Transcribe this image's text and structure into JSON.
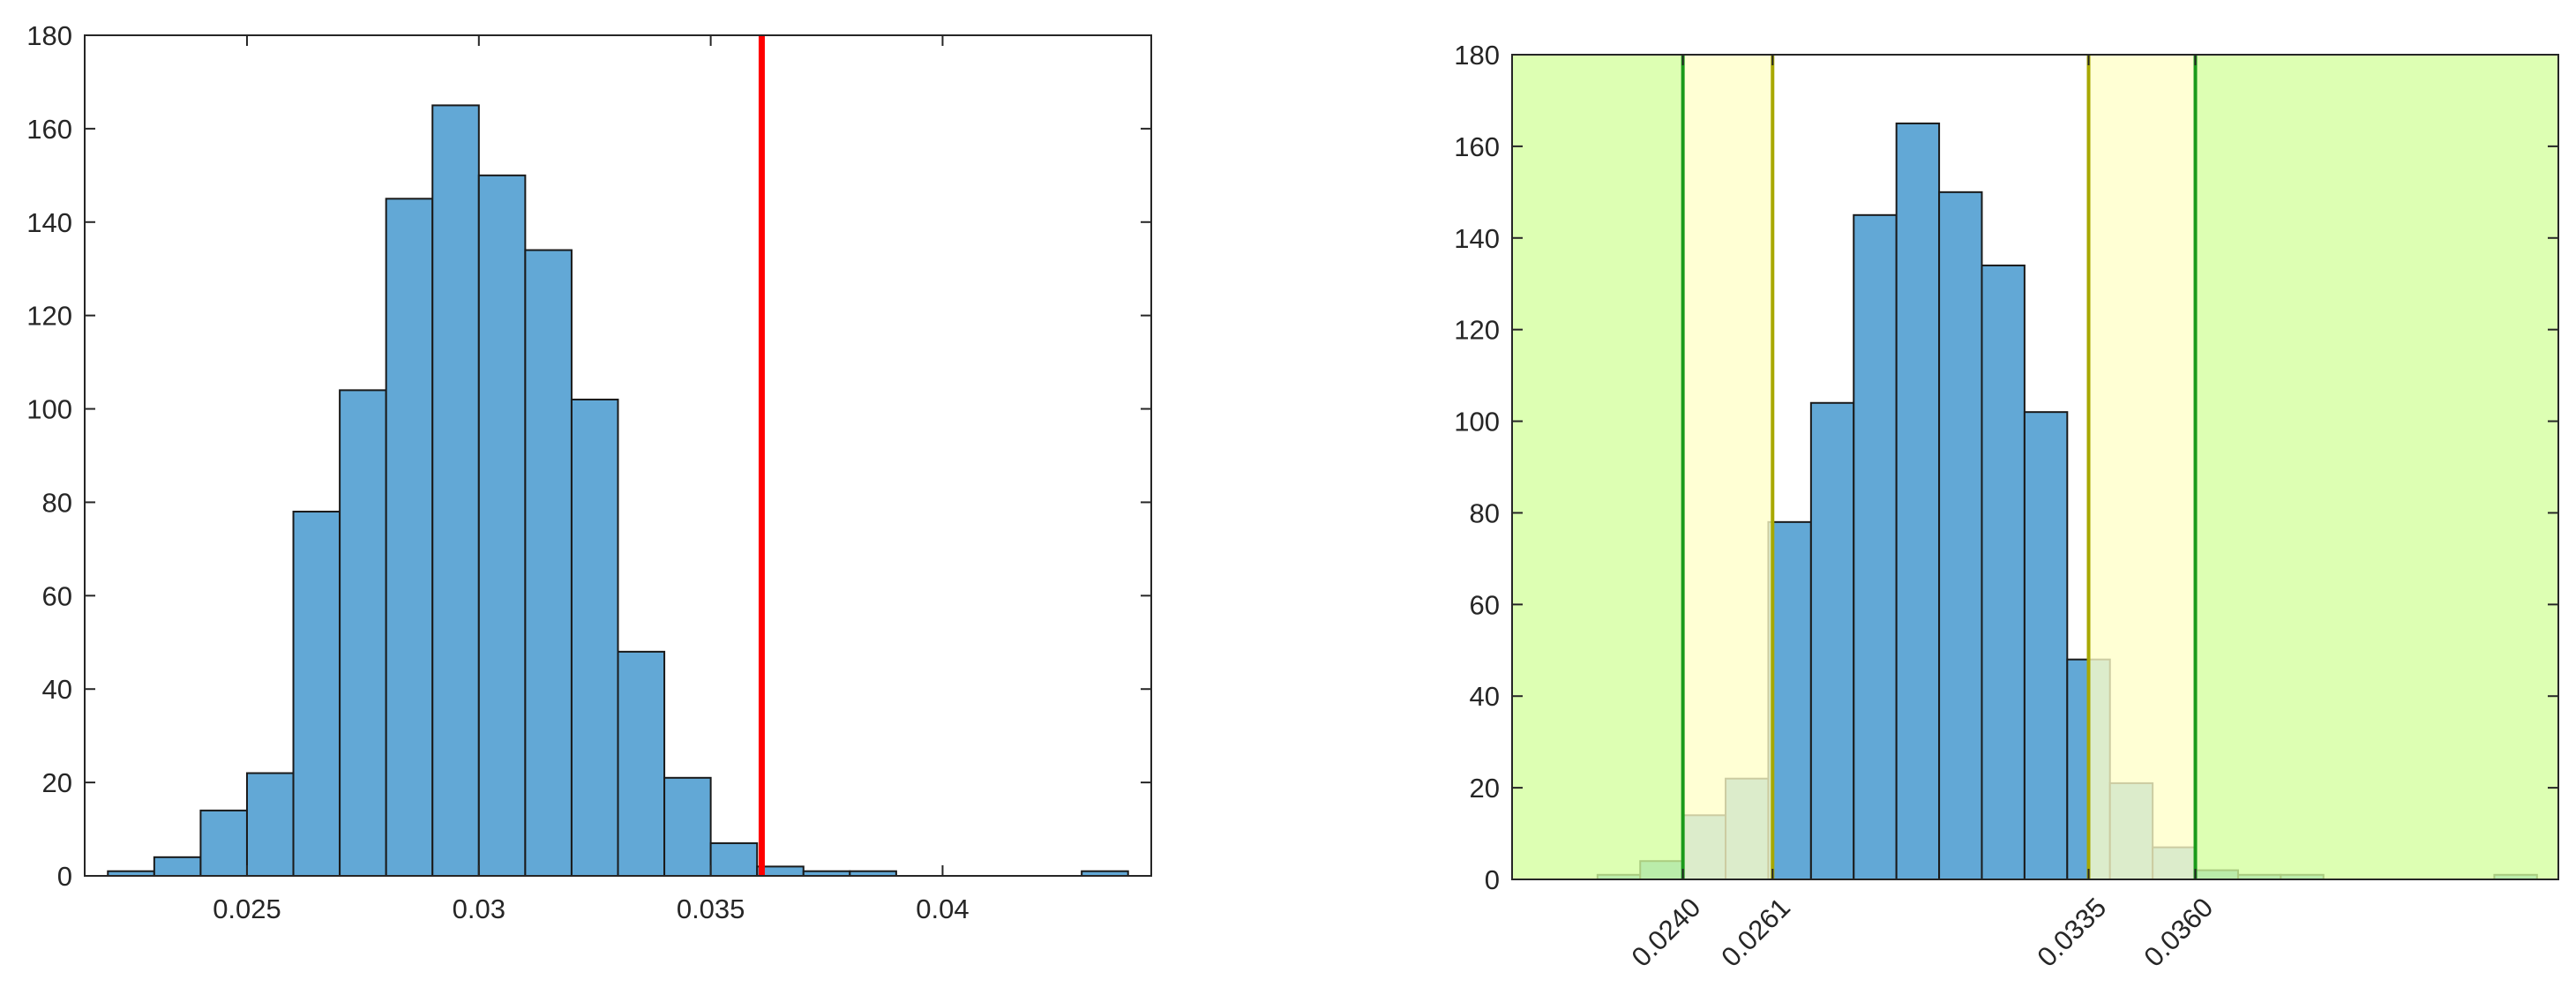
{
  "colors": {
    "bar_fill": "#62a8d6",
    "bar_stroke": "#1a1a1a",
    "threshold_line": "#ff0000",
    "outer_region_fill": "#d4ff9e",
    "outer_region_line": "#1a9a1a",
    "inner_region_fill": "#ffffc8",
    "inner_region_line": "#a8a800",
    "axis": "#262626"
  },
  "chart_data": [
    {
      "type": "bar",
      "subtype": "histogram",
      "title": "",
      "xlabel": "",
      "ylabel": "",
      "xlim": [
        0.0215,
        0.0445
      ],
      "ylim": [
        0,
        180
      ],
      "bin_width": 0.001,
      "bin_edges_start": 0.022,
      "counts": [
        1,
        4,
        14,
        22,
        78,
        104,
        145,
        165,
        150,
        134,
        102,
        48,
        21,
        7,
        2,
        1,
        1,
        0,
        0,
        0,
        0,
        1
      ],
      "x_ticks": [
        0.025,
        0.03,
        0.035,
        0.04
      ],
      "x_tick_labels": [
        "0.025",
        "0.03",
        "0.035",
        "0.04"
      ],
      "y_ticks": [
        0,
        20,
        40,
        60,
        80,
        100,
        120,
        140,
        160,
        180
      ],
      "y_tick_labels": [
        "0",
        "20",
        "40",
        "60",
        "80",
        "100",
        "120",
        "140",
        "160",
        "180"
      ],
      "vertical_line": {
        "x": 0.0361,
        "color": "#ff0000"
      },
      "grid": false,
      "box": true
    },
    {
      "type": "bar",
      "subtype": "histogram",
      "title": "",
      "xlabel": "",
      "ylabel": "",
      "xlim": [
        0.02,
        0.0445
      ],
      "ylim": [
        0,
        180
      ],
      "bin_width": 0.001,
      "bin_edges_start": 0.022,
      "counts": [
        1,
        4,
        14,
        22,
        78,
        104,
        145,
        165,
        150,
        134,
        102,
        48,
        21,
        7,
        2,
        1,
        1,
        0,
        0,
        0,
        0,
        1
      ],
      "regions": {
        "outer": [
          [
            0.02,
            0.024
          ],
          [
            0.036,
            0.0445
          ]
        ],
        "inner": [
          [
            0.024,
            0.0261
          ],
          [
            0.0335,
            0.036
          ]
        ]
      },
      "x_ticks": [
        0.024,
        0.0261,
        0.0335,
        0.036
      ],
      "x_tick_labels": [
        "0.0240",
        "0.0261",
        "0.0335",
        "0.0360"
      ],
      "y_ticks": [
        0,
        20,
        40,
        60,
        80,
        100,
        120,
        140,
        160,
        180
      ],
      "y_tick_labels": [
        "0",
        "20",
        "40",
        "60",
        "80",
        "100",
        "120",
        "140",
        "160",
        "180"
      ],
      "grid": false,
      "box": true
    }
  ]
}
